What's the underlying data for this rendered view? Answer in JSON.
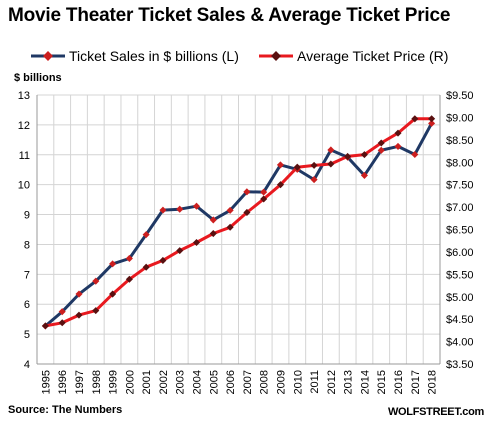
{
  "chart_data": {
    "type": "line",
    "title": "Movie Theater Ticket Sales & Average Ticket Price",
    "y_unit_left": "$ billions",
    "source": "Source: The Numbers",
    "credit": "WOLFSTREET.com",
    "x": [
      "1995",
      "1996",
      "1997",
      "1998",
      "1999",
      "2000",
      "2001",
      "2002",
      "2003",
      "2004",
      "2005",
      "2006",
      "2007",
      "2008",
      "2009",
      "2010",
      "2011",
      "2012",
      "2013",
      "2014",
      "2015",
      "2016",
      "2017",
      "2018"
    ],
    "y_left": {
      "min": 4,
      "max": 13,
      "ticks": [
        4,
        5,
        6,
        7,
        8,
        9,
        10,
        11,
        12,
        13
      ],
      "tick_labels": [
        "4",
        "5",
        "6",
        "7",
        "8",
        "9",
        "10",
        "11",
        "12",
        "13"
      ]
    },
    "y_right": {
      "min": 3.5,
      "max": 9.5,
      "ticks": [
        3.5,
        4.0,
        4.5,
        5.0,
        5.5,
        6.0,
        6.5,
        7.0,
        7.5,
        8.0,
        8.5,
        9.0,
        9.5
      ],
      "tick_labels": [
        "$3.50",
        "$4.00",
        "$4.50",
        "$5.00",
        "$5.50",
        "$6.00",
        "$6.50",
        "$7.00",
        "$7.50",
        "$8.00",
        "$8.50",
        "$9.00",
        "$9.50"
      ]
    },
    "grid": true,
    "series": [
      {
        "name": "Ticket Sales in $ billions (L)",
        "axis": "left",
        "color": "#1f3864",
        "marker_color": "#cc1f1f",
        "values": [
          5.27,
          5.75,
          6.34,
          6.77,
          7.35,
          7.53,
          8.33,
          9.15,
          9.18,
          9.28,
          8.82,
          9.14,
          9.76,
          9.75,
          10.66,
          10.51,
          10.17,
          11.16,
          10.92,
          10.31,
          11.15,
          11.28,
          11.01,
          12.05
        ]
      },
      {
        "name": "Average Ticket Price (R)",
        "axis": "right",
        "color": "#e8191f",
        "marker_color": "#5a1010",
        "values": [
          4.35,
          4.42,
          4.59,
          4.69,
          5.06,
          5.39,
          5.66,
          5.81,
          6.03,
          6.21,
          6.41,
          6.55,
          6.88,
          7.18,
          7.5,
          7.89,
          7.93,
          7.96,
          8.13,
          8.17,
          8.43,
          8.65,
          8.97,
          8.97
        ]
      }
    ]
  }
}
